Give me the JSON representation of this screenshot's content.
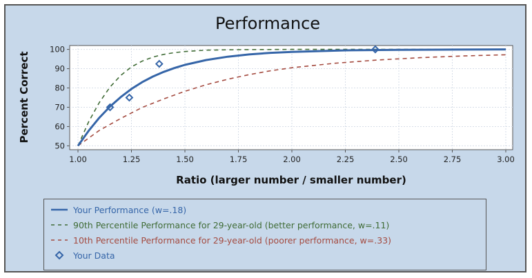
{
  "chart_data": {
    "type": "line",
    "title": "Performance",
    "xlabel": "Ratio (larger number / smaller number)",
    "ylabel": "Percent Correct",
    "xlim": [
      1.0,
      3.0
    ],
    "ylim": [
      48,
      102
    ],
    "xticks": [
      "1.00",
      "1.25",
      "1.50",
      "1.75",
      "2.00",
      "2.25",
      "2.50",
      "2.75",
      "3.00"
    ],
    "yticks": [
      "50",
      "60",
      "70",
      "80",
      "90",
      "100"
    ],
    "grid": true,
    "legend_position": "bottom",
    "series": [
      {
        "name": "Your Performance (w=.18)",
        "style": "solid",
        "color": "#3565a8",
        "x": [
          1.0,
          1.05,
          1.1,
          1.15,
          1.2,
          1.25,
          1.3,
          1.35,
          1.4,
          1.45,
          1.5,
          1.6,
          1.7,
          1.8,
          1.9,
          2.0,
          2.25,
          2.5,
          2.75,
          3.0
        ],
        "y": [
          50,
          57.8,
          64.6,
          70.4,
          75.3,
          79.5,
          83.0,
          85.9,
          88.3,
          90.3,
          92.0,
          94.5,
          96.2,
          97.4,
          98.2,
          98.7,
          99.5,
          99.8,
          99.9,
          100
        ]
      },
      {
        "name": "90th Percentile Performance for 29-year-old (better performance, w=.11)",
        "style": "dashed",
        "color": "#3f6b35",
        "x": [
          1.0,
          1.05,
          1.1,
          1.15,
          1.2,
          1.25,
          1.3,
          1.35,
          1.4,
          1.45,
          1.5,
          1.6,
          1.7,
          1.8,
          2.0,
          2.25,
          2.5,
          3.0
        ],
        "y": [
          50,
          62.5,
          72.5,
          80.5,
          86.5,
          90.9,
          93.9,
          96.0,
          97.4,
          98.3,
          98.9,
          99.6,
          99.8,
          99.9,
          100,
          100,
          100,
          100
        ]
      },
      {
        "name": "10th Percentile Performance for 29-year-old (poorer performance, w=.33)",
        "style": "dashed",
        "color": "#a44a3f",
        "x": [
          1.0,
          1.1,
          1.2,
          1.3,
          1.4,
          1.5,
          1.6,
          1.7,
          1.8,
          1.9,
          2.0,
          2.2,
          2.4,
          2.6,
          2.8,
          3.0
        ],
        "y": [
          50,
          58.0,
          64.2,
          69.9,
          74.3,
          78.3,
          81.7,
          84.5,
          86.9,
          88.9,
          90.5,
          92.8,
          94.5,
          95.7,
          96.6,
          97.2
        ]
      }
    ],
    "scatter": {
      "name": "Your Data",
      "color": "#3565a8",
      "marker": "diamond",
      "points": [
        {
          "x": 1.15,
          "y": 70
        },
        {
          "x": 1.24,
          "y": 75
        },
        {
          "x": 1.38,
          "y": 92.5
        },
        {
          "x": 2.39,
          "y": 100
        }
      ]
    }
  }
}
